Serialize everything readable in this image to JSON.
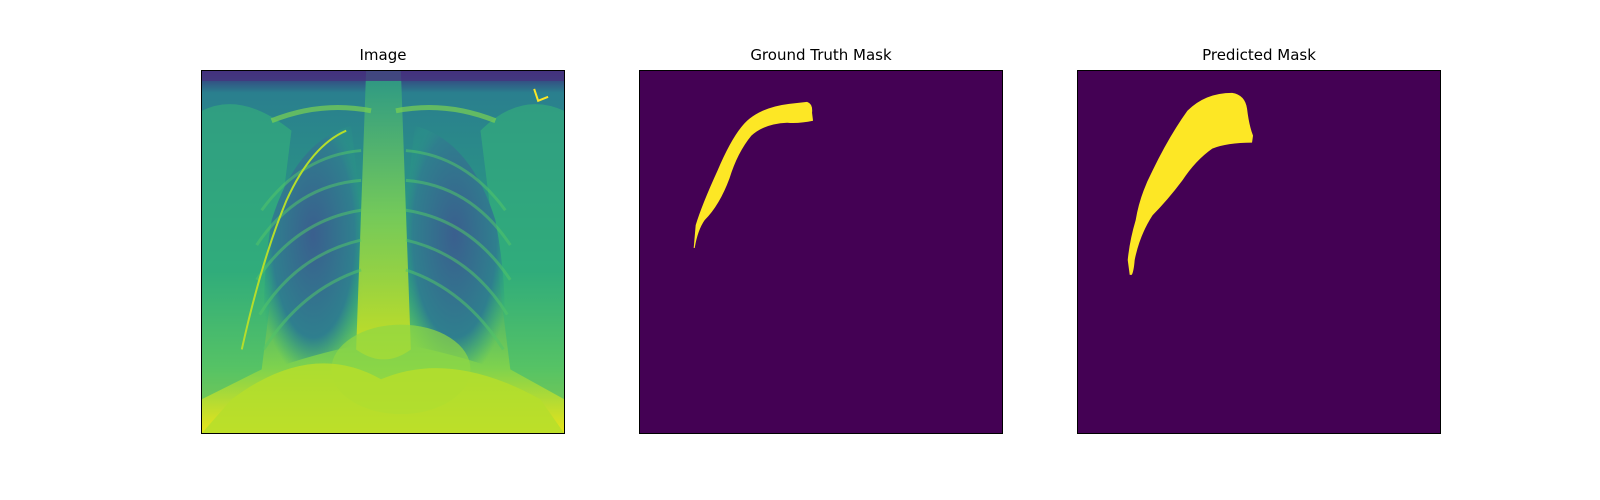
{
  "panels": [
    {
      "title": "Image"
    },
    {
      "title": "Ground Truth Mask"
    },
    {
      "title": "Predicted Mask"
    }
  ],
  "colors": {
    "mask_background": "#440154",
    "mask_foreground": "#fde725"
  }
}
